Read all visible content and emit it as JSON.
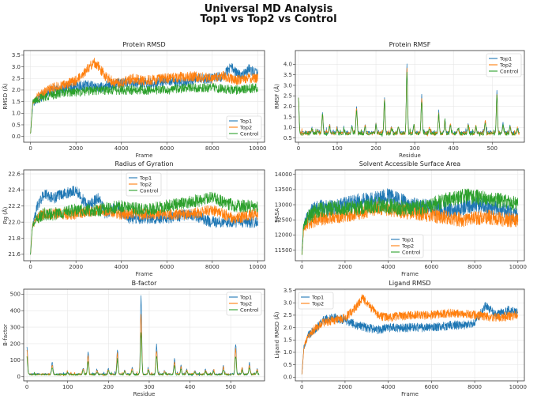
{
  "figure": {
    "title_line1": "Universal MD Analysis",
    "title_line2": "Top1 vs Top2 vs Control"
  },
  "colors": {
    "Top1": "#1f77b4",
    "Top2": "#ff7f0e",
    "Control": "#2ca02c"
  },
  "chart_data": [
    {
      "id": "rmsd",
      "type": "line",
      "title": "Protein RMSD",
      "xlabel": "Frame",
      "ylabel": "RMSD (Å)",
      "xlim": [
        -300,
        10300
      ],
      "ylim": [
        -0.25,
        3.7
      ],
      "xticks": [
        0,
        2000,
        4000,
        6000,
        8000,
        10000
      ],
      "yticks": [
        0.0,
        0.5,
        1.0,
        1.5,
        2.0,
        2.5,
        3.0,
        3.5
      ],
      "ytick_decimals": 1,
      "grid": true,
      "legend": "lower-right",
      "series": [
        {
          "name": "Top1",
          "x": [
            0,
            100,
            300,
            600,
            1000,
            1500,
            2000,
            2500,
            3000,
            3500,
            4000,
            4500,
            5000,
            5500,
            6000,
            6500,
            7000,
            7500,
            8000,
            8500,
            8800,
            9000,
            9300,
            9600,
            10000
          ],
          "y": [
            0.1,
            1.4,
            1.6,
            1.8,
            2.0,
            2.1,
            2.2,
            2.2,
            2.1,
            2.2,
            2.3,
            2.3,
            2.3,
            2.3,
            2.4,
            2.3,
            2.4,
            2.5,
            2.5,
            2.6,
            3.0,
            2.8,
            2.6,
            2.9,
            2.7
          ],
          "noise": 0.22
        },
        {
          "name": "Top2",
          "x": [
            0,
            100,
            300,
            600,
            1000,
            1500,
            2000,
            2500,
            2800,
            3000,
            3300,
            3700,
            4000,
            4500,
            5000,
            6000,
            7000,
            8000,
            8500,
            9000,
            9500,
            10000
          ],
          "y": [
            0.1,
            1.5,
            1.7,
            1.9,
            2.1,
            2.2,
            2.4,
            2.9,
            3.2,
            3.0,
            2.6,
            2.3,
            2.3,
            2.5,
            2.4,
            2.5,
            2.6,
            2.5,
            2.6,
            2.4,
            2.5,
            2.5
          ],
          "noise": 0.22
        },
        {
          "name": "Control",
          "x": [
            0,
            100,
            300,
            600,
            1000,
            1500,
            2000,
            3000,
            4000,
            5000,
            6000,
            7000,
            8000,
            9000,
            10000
          ],
          "y": [
            0.1,
            1.5,
            1.6,
            1.7,
            1.8,
            1.9,
            1.9,
            2.0,
            2.0,
            2.0,
            2.0,
            2.1,
            2.1,
            2.0,
            2.1
          ],
          "noise": 0.2
        }
      ]
    },
    {
      "id": "rmsf",
      "type": "line",
      "title": "Protein RMSF",
      "xlabel": "Residue",
      "ylabel": "RMSF (Å)",
      "xlim": [
        -8,
        583
      ],
      "ylim": [
        0.3,
        4.65
      ],
      "xticks": [
        0,
        100,
        200,
        300,
        400,
        500
      ],
      "yticks": [
        0.5,
        1.0,
        1.5,
        2.0,
        2.5,
        3.0,
        3.5,
        4.0
      ],
      "ytick_decimals": 1,
      "grid": true,
      "legend": "upper-right",
      "peaks": [
        [
          0,
          2.8
        ],
        [
          35,
          1.0
        ],
        [
          50,
          0.9
        ],
        [
          62,
          1.8
        ],
        [
          80,
          1.1
        ],
        [
          100,
          1.0
        ],
        [
          118,
          0.9
        ],
        [
          138,
          1.1
        ],
        [
          150,
          2.1
        ],
        [
          172,
          1.1
        ],
        [
          200,
          1.2
        ],
        [
          222,
          2.6
        ],
        [
          240,
          1.0
        ],
        [
          258,
          1.1
        ],
        [
          280,
          4.4
        ],
        [
          298,
          1.2
        ],
        [
          318,
          2.6
        ],
        [
          338,
          1.0
        ],
        [
          362,
          1.8
        ],
        [
          378,
          1.4
        ],
        [
          392,
          1.2
        ],
        [
          412,
          1.0
        ],
        [
          438,
          1.2
        ],
        [
          458,
          1.1
        ],
        [
          482,
          1.4
        ],
        [
          512,
          2.9
        ],
        [
          528,
          1.2
        ],
        [
          546,
          1.1
        ],
        [
          565,
          1.0
        ]
      ],
      "series": [
        {
          "name": "Top1",
          "base": 0.75,
          "scale": 1.0,
          "noise": 0.14
        },
        {
          "name": "Top2",
          "base": 0.72,
          "scale": 0.95,
          "noise": 0.15
        },
        {
          "name": "Control",
          "base": 0.7,
          "scale": 0.9,
          "noise": 0.13
        }
      ]
    },
    {
      "id": "rg",
      "type": "line",
      "title": "Radius of Gyration",
      "xlabel": "Frame",
      "ylabel": "Rg (Å)",
      "xlim": [
        -300,
        10300
      ],
      "ylim": [
        21.52,
        22.65
      ],
      "xticks": [
        0,
        2000,
        4000,
        6000,
        8000,
        10000
      ],
      "yticks": [
        21.6,
        21.8,
        22.0,
        22.2,
        22.4,
        22.6
      ],
      "ytick_decimals": 1,
      "grid": true,
      "legend": "upper-left-inset",
      "series": [
        {
          "name": "Top1",
          "x": [
            0,
            80,
            300,
            600,
            1000,
            1500,
            2000,
            2500,
            3000,
            3300,
            3800,
            4200,
            5000,
            6000,
            7000,
            8000,
            9000,
            10000
          ],
          "y": [
            21.6,
            21.95,
            22.2,
            22.35,
            22.3,
            22.35,
            22.4,
            22.2,
            22.3,
            22.1,
            22.2,
            22.05,
            22.05,
            22.05,
            22.1,
            22.0,
            22.0,
            22.0
          ],
          "noise": 0.07
        },
        {
          "name": "Top2",
          "x": [
            0,
            80,
            300,
            600,
            1000,
            2000,
            3000,
            4000,
            5000,
            6000,
            7000,
            8000,
            9000,
            10000
          ],
          "y": [
            21.6,
            21.95,
            22.05,
            22.1,
            22.1,
            22.1,
            22.15,
            22.1,
            22.1,
            22.1,
            22.1,
            22.15,
            22.05,
            22.1
          ],
          "noise": 0.07
        },
        {
          "name": "Control",
          "x": [
            0,
            80,
            300,
            600,
            1000,
            2000,
            3000,
            4000,
            5000,
            6000,
            7000,
            8000,
            9000,
            10000
          ],
          "y": [
            21.6,
            21.95,
            22.05,
            22.1,
            22.1,
            22.15,
            22.15,
            22.2,
            22.15,
            22.2,
            22.25,
            22.3,
            22.2,
            22.2
          ],
          "noise": 0.08
        }
      ]
    },
    {
      "id": "sasa",
      "type": "line",
      "title": "Solvent Accessible Surface Area",
      "xlabel": "Frame",
      "ylabel": "SASA",
      "xlim": [
        -300,
        10300
      ],
      "ylim": [
        11150,
        14150
      ],
      "xticks": [
        0,
        2000,
        4000,
        6000,
        8000,
        10000
      ],
      "yticks": [
        11500,
        12000,
        12500,
        13000,
        13500,
        14000
      ],
      "ytick_decimals": 0,
      "grid": true,
      "legend": "lower-center",
      "series": [
        {
          "name": "Top1",
          "x": [
            0,
            80,
            300,
            700,
            1500,
            2500,
            3500,
            4000,
            5000,
            6000,
            7000,
            8000,
            9000,
            10000
          ],
          "y": [
            11300,
            12300,
            12700,
            12900,
            12900,
            13100,
            13200,
            13300,
            13000,
            12900,
            12800,
            13000,
            12900,
            12600
          ],
          "noise": 260
        },
        {
          "name": "Top2",
          "x": [
            0,
            80,
            300,
            700,
            1500,
            2500,
            3500,
            4500,
            5500,
            6500,
            7500,
            8500,
            9500,
            10000
          ],
          "y": [
            11300,
            12200,
            12400,
            12500,
            12600,
            12700,
            12900,
            12800,
            12700,
            12600,
            12500,
            12600,
            12500,
            12500
          ],
          "noise": 240
        },
        {
          "name": "Control",
          "x": [
            0,
            80,
            300,
            700,
            1500,
            2500,
            3500,
            4500,
            5500,
            6500,
            7500,
            8500,
            9500,
            10000
          ],
          "y": [
            11300,
            12300,
            12600,
            12800,
            12900,
            12900,
            13000,
            12900,
            12900,
            13100,
            13300,
            13200,
            13100,
            13000
          ],
          "noise": 260
        }
      ]
    },
    {
      "id": "bfactor",
      "type": "line",
      "title": "B-factor",
      "xlabel": "Residue",
      "ylabel": "B-factor",
      "xlim": [
        -8,
        583
      ],
      "ylim": [
        -25,
        530
      ],
      "xticks": [
        0,
        100,
        200,
        300,
        400,
        500
      ],
      "yticks": [
        0,
        100,
        200,
        300,
        400,
        500
      ],
      "ytick_decimals": 0,
      "grid": true,
      "legend": "upper-right",
      "peaks": [
        [
          0,
          210
        ],
        [
          62,
          90
        ],
        [
          100,
          30
        ],
        [
          138,
          60
        ],
        [
          150,
          160
        ],
        [
          172,
          40
        ],
        [
          200,
          50
        ],
        [
          222,
          180
        ],
        [
          240,
          40
        ],
        [
          258,
          60
        ],
        [
          280,
          510
        ],
        [
          298,
          50
        ],
        [
          318,
          210
        ],
        [
          338,
          40
        ],
        [
          362,
          110
        ],
        [
          378,
          70
        ],
        [
          392,
          50
        ],
        [
          412,
          40
        ],
        [
          438,
          50
        ],
        [
          458,
          40
        ],
        [
          482,
          70
        ],
        [
          512,
          220
        ],
        [
          528,
          60
        ],
        [
          546,
          90
        ],
        [
          565,
          50
        ]
      ],
      "series": [
        {
          "name": "Top1",
          "base": 15,
          "scale": 1.0,
          "noise": 10
        },
        {
          "name": "Top2",
          "base": 14,
          "scale": 0.85,
          "noise": 10
        },
        {
          "name": "Control",
          "base": 13,
          "scale": 0.6,
          "noise": 9
        }
      ]
    },
    {
      "id": "ligrmsd",
      "type": "line",
      "title": "Ligand RMSD",
      "xlabel": "Frame",
      "ylabel": "Ligand RMSD (Å)",
      "xlim": [
        -300,
        10300
      ],
      "ylim": [
        -0.15,
        3.55
      ],
      "xticks": [
        0,
        2000,
        4000,
        6000,
        8000,
        10000
      ],
      "yticks": [
        0.0,
        0.5,
        1.0,
        1.5,
        2.0,
        2.5,
        3.0,
        3.5
      ],
      "ytick_decimals": 1,
      "grid": true,
      "legend": "upper-left",
      "series": [
        {
          "name": "Top1",
          "x": [
            0,
            100,
            300,
            700,
            1000,
            1500,
            2000,
            2500,
            3000,
            3500,
            4000,
            5000,
            6000,
            7000,
            7500,
            8000,
            8500,
            9000,
            9500,
            10000
          ],
          "y": [
            0.1,
            1.2,
            1.7,
            2.0,
            2.3,
            2.4,
            2.3,
            2.1,
            2.0,
            1.9,
            2.0,
            2.0,
            2.0,
            2.1,
            2.1,
            2.2,
            2.9,
            2.5,
            2.7,
            2.6
          ],
          "noise": 0.18
        },
        {
          "name": "Top2",
          "x": [
            0,
            100,
            300,
            700,
            1000,
            1500,
            2000,
            2500,
            2800,
            3100,
            3500,
            4000,
            5000,
            6000,
            7000,
            8000,
            9000,
            10000
          ],
          "y": [
            0.1,
            1.2,
            1.7,
            2.0,
            2.2,
            2.3,
            2.4,
            2.8,
            3.2,
            2.9,
            2.5,
            2.4,
            2.5,
            2.5,
            2.6,
            2.5,
            2.4,
            2.5
          ],
          "noise": 0.18
        }
      ]
    }
  ]
}
